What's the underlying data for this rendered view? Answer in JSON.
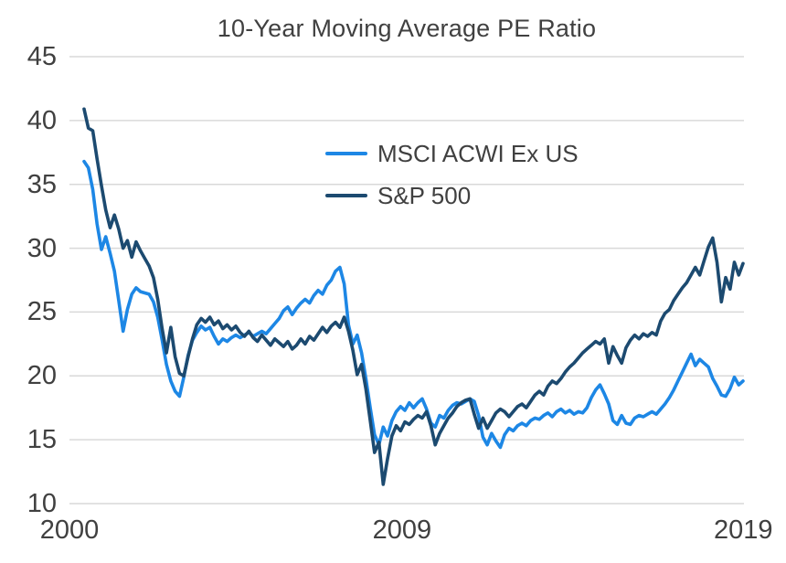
{
  "title": "10-Year Moving Average PE Ratio",
  "axes": {
    "y": {
      "ticks": [
        "45",
        "40",
        "35",
        "30",
        "25",
        "20",
        "15",
        "10"
      ],
      "min": 10,
      "max": 45
    },
    "x": {
      "ticks": [
        "2000",
        "2009",
        "2019"
      ]
    }
  },
  "colors": {
    "text": "#404040",
    "grid": "#D9D9D9",
    "background": "#FFFFFF",
    "msci_line": "#1D87E5",
    "sp500_line": "#1C4A70"
  },
  "chart_data": {
    "type": "line",
    "title": "10-Year Moving Average PE Ratio",
    "xlabel": "",
    "ylabel": "",
    "x_unit": "year",
    "x_start": 2000.375,
    "x_step": 0.125,
    "xlim": [
      2000,
      2019.5
    ],
    "ylim": [
      10,
      45
    ],
    "yticks": [
      45,
      40,
      35,
      30,
      25,
      20,
      15,
      10
    ],
    "xticks": [
      "2000",
      "2009",
      "2019"
    ],
    "grid": "horizontal-only",
    "legend_position": "inside-upper-middle",
    "series": [
      {
        "name": "MSCI ACWI Ex US",
        "color": "#1D87E5",
        "values": [
          36.8,
          36.3,
          34.6,
          31.9,
          29.9,
          30.9,
          29.6,
          28.2,
          25.9,
          23.5,
          25.2,
          26.4,
          26.9,
          26.6,
          26.5,
          26.4,
          25.8,
          24.6,
          22.8,
          20.9,
          19.6,
          18.8,
          18.4,
          19.9,
          21.6,
          22.8,
          23.4,
          23.9,
          23.6,
          23.8,
          23.1,
          22.5,
          22.9,
          22.7,
          23.0,
          23.2,
          23.0,
          23.2,
          23.4,
          23.1,
          23.3,
          23.5,
          23.3,
          23.7,
          24.1,
          24.5,
          25.1,
          25.4,
          24.8,
          25.3,
          25.7,
          26.0,
          25.7,
          26.3,
          26.7,
          26.4,
          27.1,
          27.5,
          28.2,
          28.5,
          27.2,
          24.0,
          22.5,
          23.2,
          21.8,
          19.8,
          17.5,
          15.4,
          14.6,
          16.0,
          15.3,
          16.5,
          17.2,
          17.6,
          17.3,
          17.9,
          17.5,
          17.9,
          18.2,
          17.4,
          16.3,
          16.0,
          16.9,
          16.7,
          17.3,
          17.7,
          17.9,
          17.8,
          18.0,
          18.2,
          18.0,
          16.9,
          15.2,
          14.6,
          15.5,
          14.9,
          14.4,
          15.4,
          15.9,
          15.7,
          16.1,
          16.3,
          16.1,
          16.5,
          16.7,
          16.6,
          16.9,
          17.1,
          16.8,
          17.2,
          17.4,
          17.1,
          17.3,
          17.0,
          17.2,
          17.1,
          17.5,
          18.3,
          18.9,
          19.3,
          18.6,
          17.8,
          16.5,
          16.2,
          16.9,
          16.3,
          16.2,
          16.7,
          16.9,
          16.8,
          17.0,
          17.2,
          17.0,
          17.4,
          17.8,
          18.3,
          18.9,
          19.6,
          20.3,
          21.0,
          21.7,
          20.8,
          21.3,
          21.0,
          20.7,
          19.8,
          19.2,
          18.5,
          18.4,
          19.0,
          19.9,
          19.3,
          19.6
        ]
      },
      {
        "name": "S&P 500",
        "color": "#1C4A70",
        "values": [
          40.9,
          39.4,
          39.2,
          37.0,
          34.9,
          33.0,
          31.6,
          32.6,
          31.5,
          30.0,
          30.6,
          29.3,
          30.5,
          29.8,
          29.2,
          28.6,
          27.7,
          26.0,
          23.7,
          21.8,
          23.8,
          21.5,
          20.2,
          20.0,
          21.5,
          22.9,
          24.0,
          24.5,
          24.2,
          24.6,
          24.0,
          24.3,
          23.7,
          24.0,
          23.6,
          23.9,
          23.4,
          23.1,
          23.5,
          23.0,
          22.7,
          23.2,
          22.8,
          22.4,
          22.9,
          22.6,
          22.3,
          22.7,
          22.1,
          22.4,
          22.9,
          22.5,
          23.1,
          22.8,
          23.3,
          23.8,
          23.4,
          23.9,
          24.2,
          23.8,
          24.6,
          23.5,
          22.0,
          20.1,
          20.9,
          19.0,
          16.5,
          14.0,
          14.8,
          11.5,
          13.5,
          15.3,
          16.1,
          15.7,
          16.4,
          16.2,
          16.6,
          16.9,
          16.7,
          17.2,
          16.1,
          14.6,
          15.5,
          16.1,
          16.7,
          17.1,
          17.6,
          17.9,
          18.1,
          18.2,
          17.0,
          15.9,
          16.7,
          15.9,
          16.5,
          17.1,
          17.4,
          17.2,
          16.8,
          17.2,
          17.6,
          17.8,
          17.5,
          18.0,
          18.5,
          18.8,
          18.5,
          19.2,
          19.6,
          19.4,
          19.8,
          20.3,
          20.7,
          21.0,
          21.4,
          21.8,
          22.1,
          22.4,
          22.7,
          22.5,
          22.9,
          21.0,
          22.3,
          21.6,
          21.0,
          22.2,
          22.8,
          23.2,
          22.9,
          23.3,
          23.1,
          23.4,
          23.2,
          24.3,
          24.9,
          25.2,
          25.9,
          26.4,
          26.9,
          27.3,
          27.9,
          28.5,
          27.9,
          29.0,
          30.1,
          30.8,
          28.9,
          25.8,
          27.7,
          26.8,
          28.9,
          27.9,
          28.8
        ]
      }
    ]
  }
}
